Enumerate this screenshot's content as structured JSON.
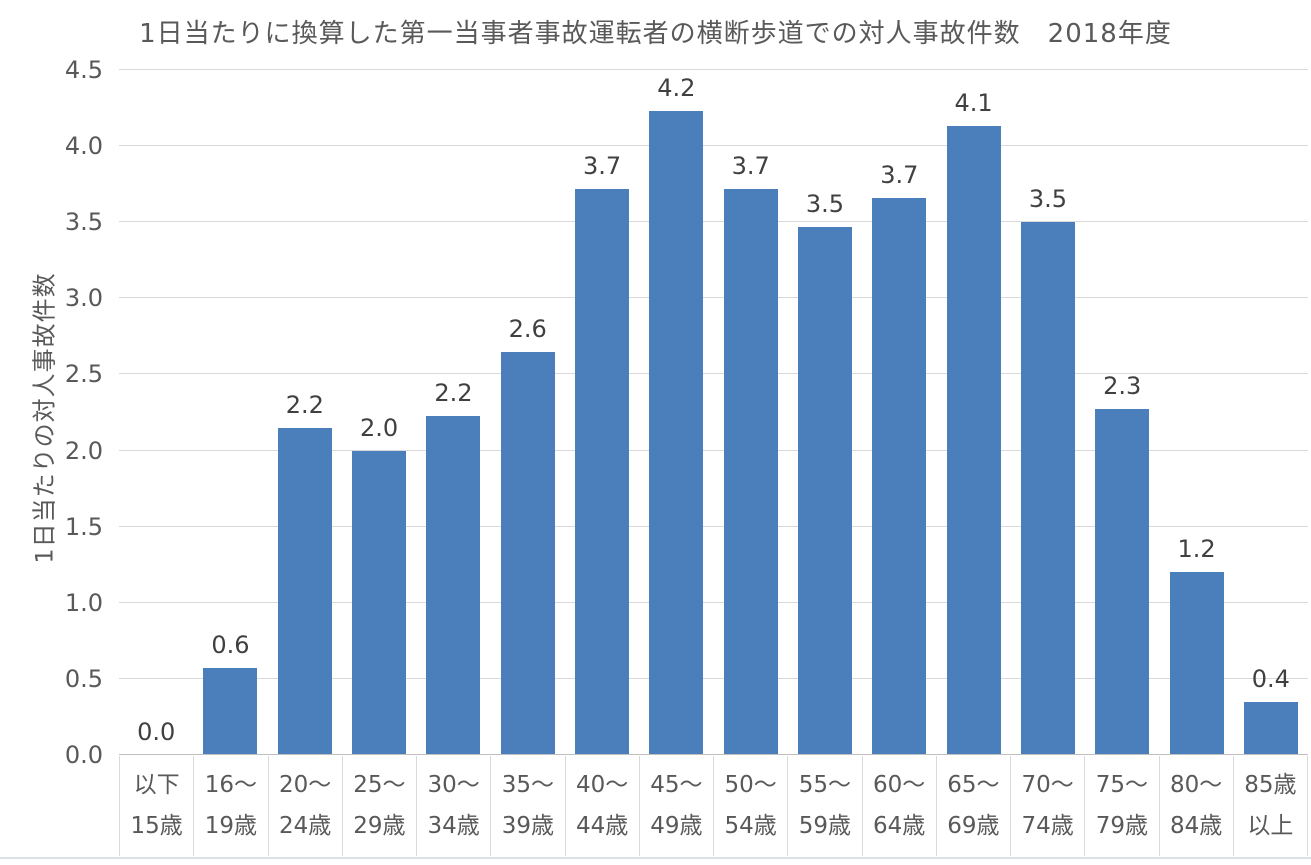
{
  "chart_data": {
    "type": "bar",
    "title": "1日当たりに換算した第一当事者事故運転者の横断歩道での対人事故件数　2018年度",
    "xlabel": "",
    "ylabel": "1日当たりの対人事故件数",
    "categories": [
      [
        "以下",
        "15歳"
      ],
      [
        "16～",
        "19歳"
      ],
      [
        "20～",
        "24歳"
      ],
      [
        "25～",
        "29歳"
      ],
      [
        "30～",
        "34歳"
      ],
      [
        "35～",
        "39歳"
      ],
      [
        "40～",
        "44歳"
      ],
      [
        "45～",
        "49歳"
      ],
      [
        "50～",
        "54歳"
      ],
      [
        "55～",
        "59歳"
      ],
      [
        "60～",
        "64歳"
      ],
      [
        "65～",
        "69歳"
      ],
      [
        "70～",
        "74歳"
      ],
      [
        "75～",
        "79歳"
      ],
      [
        "80～",
        "84歳"
      ],
      [
        "85歳",
        "以上"
      ]
    ],
    "values": [
      0.0,
      0.6,
      2.2,
      2.0,
      2.2,
      2.6,
      3.7,
      4.2,
      3.7,
      3.5,
      3.7,
      4.1,
      3.5,
      2.3,
      1.2,
      0.4
    ],
    "value_labels": [
      "0.0",
      "0.6",
      "2.2",
      "2.0",
      "2.2",
      "2.6",
      "3.7",
      "4.2",
      "3.7",
      "3.5",
      "3.7",
      "4.1",
      "3.5",
      "2.3",
      "1.2",
      "0.4"
    ],
    "bar_heights_precise": [
      0.0,
      0.57,
      2.15,
      2.0,
      2.23,
      2.65,
      3.72,
      4.23,
      3.72,
      3.47,
      3.66,
      4.13,
      3.5,
      2.27,
      1.2,
      0.35
    ],
    "yticks": [
      "0.0",
      "0.5",
      "1.0",
      "1.5",
      "2.0",
      "2.5",
      "3.0",
      "3.5",
      "4.0",
      "4.5"
    ],
    "ylim": [
      0,
      4.5
    ],
    "grid": true,
    "legend": false,
    "colors": {
      "bar": "#4B7FBC",
      "gridline": "#d9d9d9",
      "axis_line": "#bfbfbf",
      "axis_text": "#595959",
      "data_label_text": "#404040",
      "bottom_edge_line": "#dbe1e8"
    }
  }
}
